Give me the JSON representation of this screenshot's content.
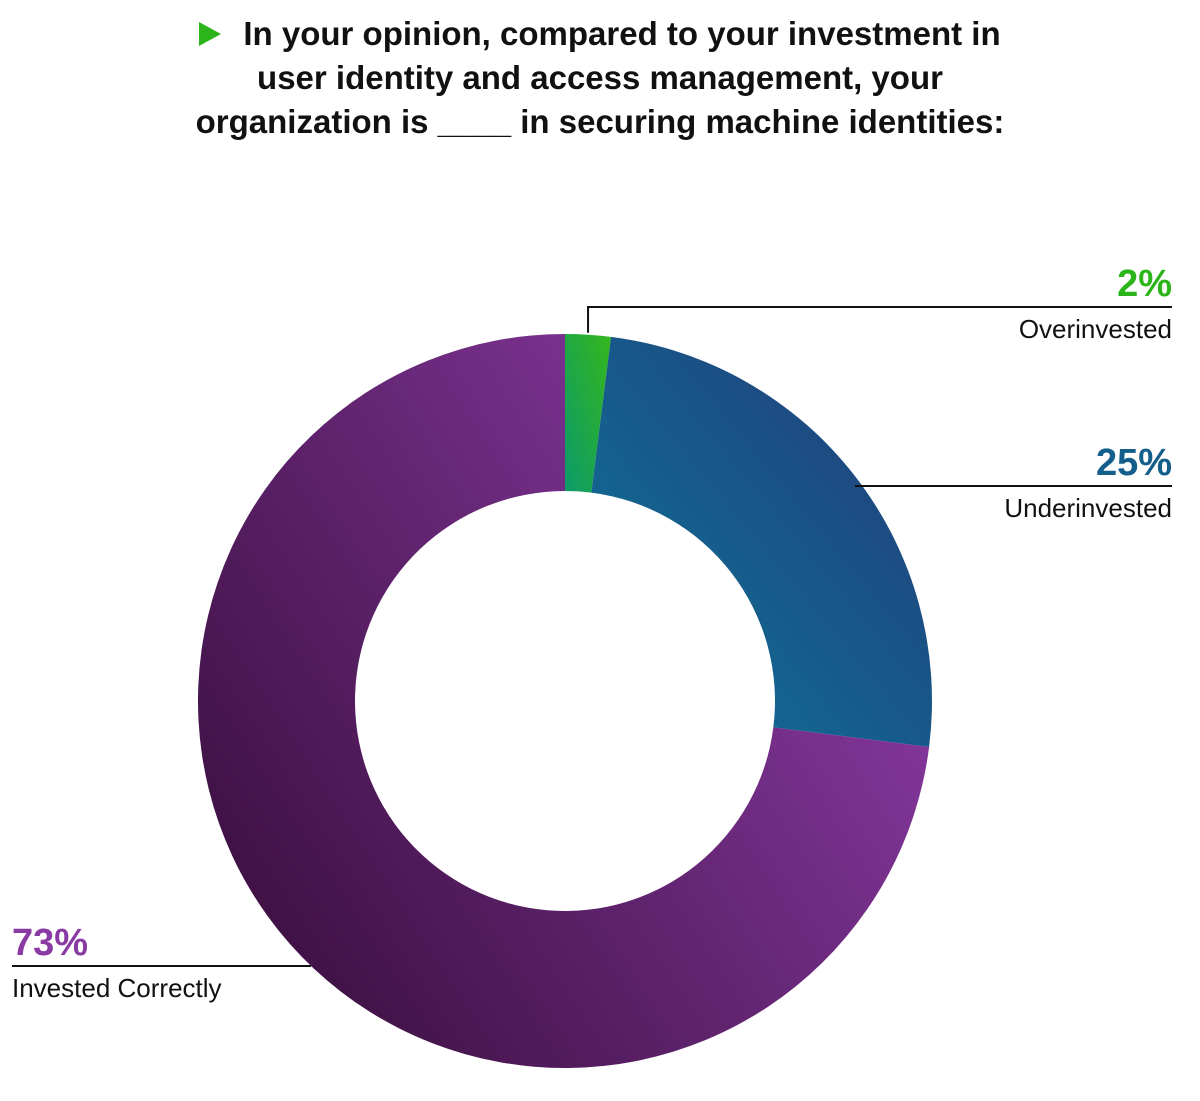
{
  "title": {
    "lines": [
      "In your opinion, compared to your investment in",
      "user identity and access management, your",
      "organization is ____ in securing machine identities:"
    ],
    "icon": "play-triangle-icon",
    "icon_color": "#2bb51b"
  },
  "chart_data": {
    "type": "pie",
    "variant": "donut",
    "values_unit": "%",
    "slices": [
      {
        "name": "Overinvested",
        "value": 2,
        "label": "2%",
        "color_start": "#0c9a6a",
        "color_end": "#35b71c",
        "label_color": "#2bb51b"
      },
      {
        "name": "Underinvested",
        "value": 25,
        "label": "25%",
        "color_start": "#0f6e95",
        "color_end": "#243a78",
        "label_color": "#135e8a"
      },
      {
        "name": "Invested Correctly",
        "value": 73,
        "label": "73%",
        "color_start": "#3a0f3f",
        "color_end": "#8a3aa3",
        "label_color": "#8a3aa3"
      }
    ]
  }
}
